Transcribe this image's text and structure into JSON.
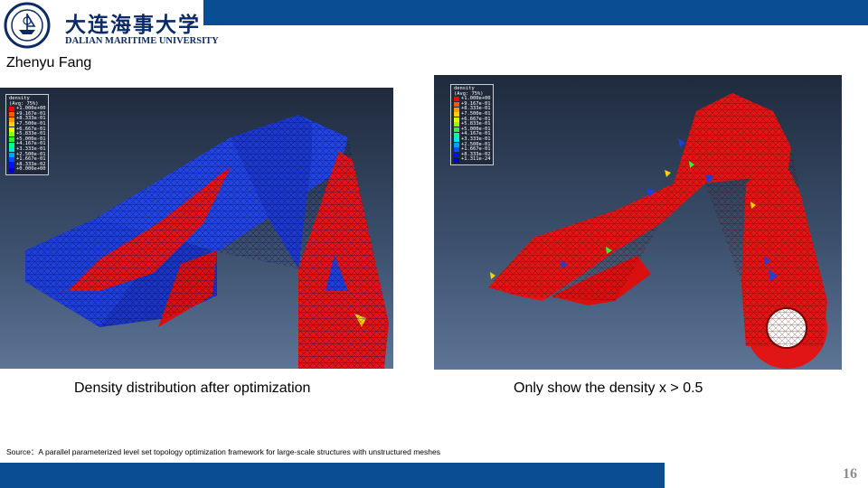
{
  "header": {
    "logo_cn": "大连海事大学",
    "logo_en": "DALIAN MARITIME UNIVERSITY",
    "brand_color": "#0b4d93"
  },
  "author": "Zhenyu Fang",
  "left_figure": {
    "legend_title": "density\n(Avg: 75%)",
    "legend_values": [
      "+1.000e+00",
      "+9.167e-01",
      "+8.333e-01",
      "+7.500e-01",
      "+6.667e-01",
      "+5.833e-01",
      "+5.000e-01",
      "+4.167e-01",
      "+3.333e-01",
      "+2.500e-01",
      "+1.667e-01",
      "+8.333e-02",
      "+0.000e+00"
    ],
    "caption": "Density distribution after optimization"
  },
  "right_figure": {
    "legend_title": "density\n(Avg: 75%)",
    "legend_values": [
      "+1.000e+00",
      "+9.167e-01",
      "+8.333e-01",
      "+7.500e-01",
      "+6.667e-01",
      "+5.833e-01",
      "+5.000e-01",
      "+4.167e-01",
      "+3.333e-01",
      "+2.500e-01",
      "+1.667e-01",
      "+8.333e-02",
      "+1.311e-24"
    ],
    "caption": "Only show the density x > 0.5"
  },
  "legend_colors": [
    "#ff0000",
    "#ff5a00",
    "#ff9a00",
    "#ffd200",
    "#e6ff00",
    "#96ff00",
    "#28ff28",
    "#00ff96",
    "#00e6e6",
    "#00a0ff",
    "#0050ff",
    "#0010ff",
    "#0000c8"
  ],
  "source": "Source：A parallel parameterized level set topology optimization framework for large-scale structures with unstructured meshes",
  "page_number": "16"
}
